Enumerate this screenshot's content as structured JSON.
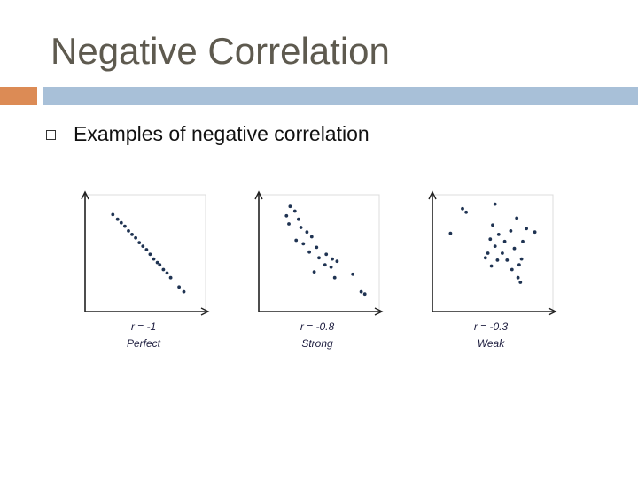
{
  "slide": {
    "title": "Negative Correlation",
    "bullet": "Examples of negative correlation"
  },
  "colors": {
    "accent_orange": "#dc8b55",
    "accent_blue": "#a8c0d8",
    "point": "#1f3352"
  },
  "chart_data": [
    {
      "type": "scatter",
      "r_label": "r = -1",
      "label": "Perfect",
      "xlabel": "",
      "ylabel": "",
      "xlim": [
        0,
        10
      ],
      "ylim": [
        0,
        10
      ],
      "points": [
        [
          2.3,
          8.3
        ],
        [
          2.7,
          7.9
        ],
        [
          3.0,
          7.6
        ],
        [
          3.3,
          7.3
        ],
        [
          3.6,
          6.9
        ],
        [
          3.9,
          6.6
        ],
        [
          4.2,
          6.3
        ],
        [
          4.5,
          5.9
        ],
        [
          4.8,
          5.6
        ],
        [
          5.1,
          5.3
        ],
        [
          5.4,
          4.9
        ],
        [
          5.7,
          4.5
        ],
        [
          6.0,
          4.2
        ],
        [
          6.2,
          4.0
        ],
        [
          6.5,
          3.6
        ],
        [
          6.8,
          3.3
        ],
        [
          7.1,
          2.9
        ],
        [
          7.8,
          2.1
        ],
        [
          8.2,
          1.7
        ]
      ]
    },
    {
      "type": "scatter",
      "r_label": "r = -0.8",
      "label": "Strong",
      "xlabel": "",
      "ylabel": "",
      "xlim": [
        0,
        10
      ],
      "ylim": [
        0,
        10
      ],
      "points": [
        [
          2.6,
          9.0
        ],
        [
          3.0,
          8.6
        ],
        [
          2.3,
          8.2
        ],
        [
          3.3,
          7.9
        ],
        [
          2.5,
          7.5
        ],
        [
          3.5,
          7.2
        ],
        [
          4.0,
          6.8
        ],
        [
          4.4,
          6.4
        ],
        [
          3.1,
          6.1
        ],
        [
          3.7,
          5.8
        ],
        [
          4.8,
          5.5
        ],
        [
          4.2,
          5.1
        ],
        [
          5.6,
          4.9
        ],
        [
          5.0,
          4.6
        ],
        [
          6.1,
          4.5
        ],
        [
          6.5,
          4.3
        ],
        [
          5.5,
          4.0
        ],
        [
          6.0,
          3.8
        ],
        [
          4.6,
          3.4
        ],
        [
          7.8,
          3.2
        ],
        [
          6.3,
          2.9
        ],
        [
          8.5,
          1.7
        ],
        [
          8.8,
          1.5
        ]
      ]
    },
    {
      "type": "scatter",
      "r_label": "r = -0.3",
      "label": "Weak",
      "xlabel": "",
      "ylabel": "",
      "xlim": [
        0,
        10
      ],
      "ylim": [
        0,
        10
      ],
      "points": [
        [
          2.5,
          8.8
        ],
        [
          2.8,
          8.5
        ],
        [
          5.2,
          9.2
        ],
        [
          7.0,
          8.0
        ],
        [
          5.0,
          7.4
        ],
        [
          7.8,
          7.1
        ],
        [
          6.5,
          6.9
        ],
        [
          1.5,
          6.7
        ],
        [
          5.5,
          6.6
        ],
        [
          8.5,
          6.8
        ],
        [
          4.8,
          6.2
        ],
        [
          6.0,
          6.0
        ],
        [
          7.5,
          6.0
        ],
        [
          5.2,
          5.6
        ],
        [
          6.8,
          5.4
        ],
        [
          4.6,
          5.0
        ],
        [
          5.8,
          5.0
        ],
        [
          4.4,
          4.6
        ],
        [
          6.2,
          4.4
        ],
        [
          7.4,
          4.5
        ],
        [
          5.4,
          4.4
        ],
        [
          4.9,
          3.9
        ],
        [
          6.6,
          3.6
        ],
        [
          7.2,
          4.0
        ],
        [
          7.1,
          2.9
        ],
        [
          7.3,
          2.5
        ]
      ]
    }
  ]
}
